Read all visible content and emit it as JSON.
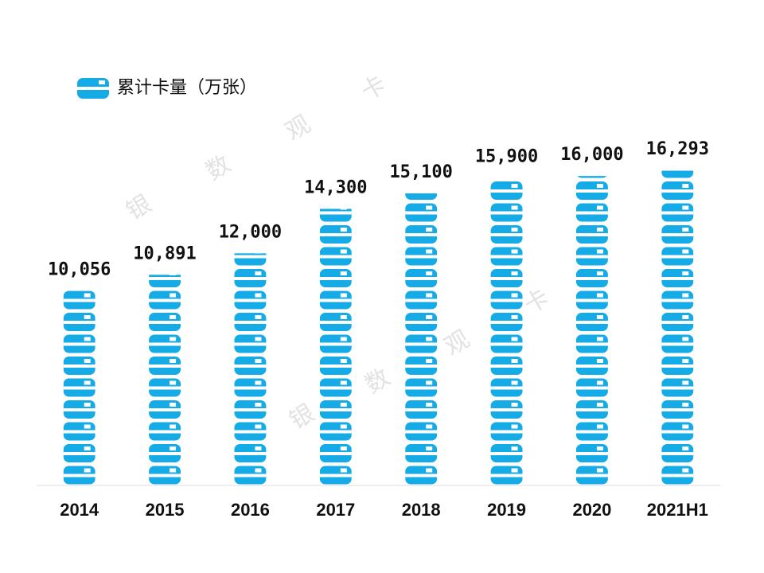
{
  "chart_data": {
    "type": "pictograph",
    "legend": "累计卡量（万张）",
    "watermark": [
      "银",
      "数",
      "观",
      "卡"
    ],
    "categories": [
      "2014",
      "2015",
      "2016",
      "2017",
      "2018",
      "2019",
      "2020",
      "2021H1"
    ],
    "values": [
      10056,
      10891,
      12000,
      14300,
      15100,
      15900,
      16000,
      16293
    ],
    "value_labels": [
      "10,056",
      "10,891",
      "12,000",
      "14,300",
      "15,100",
      "15,900",
      "16,000",
      "16,293"
    ],
    "color": "#14abe6"
  }
}
